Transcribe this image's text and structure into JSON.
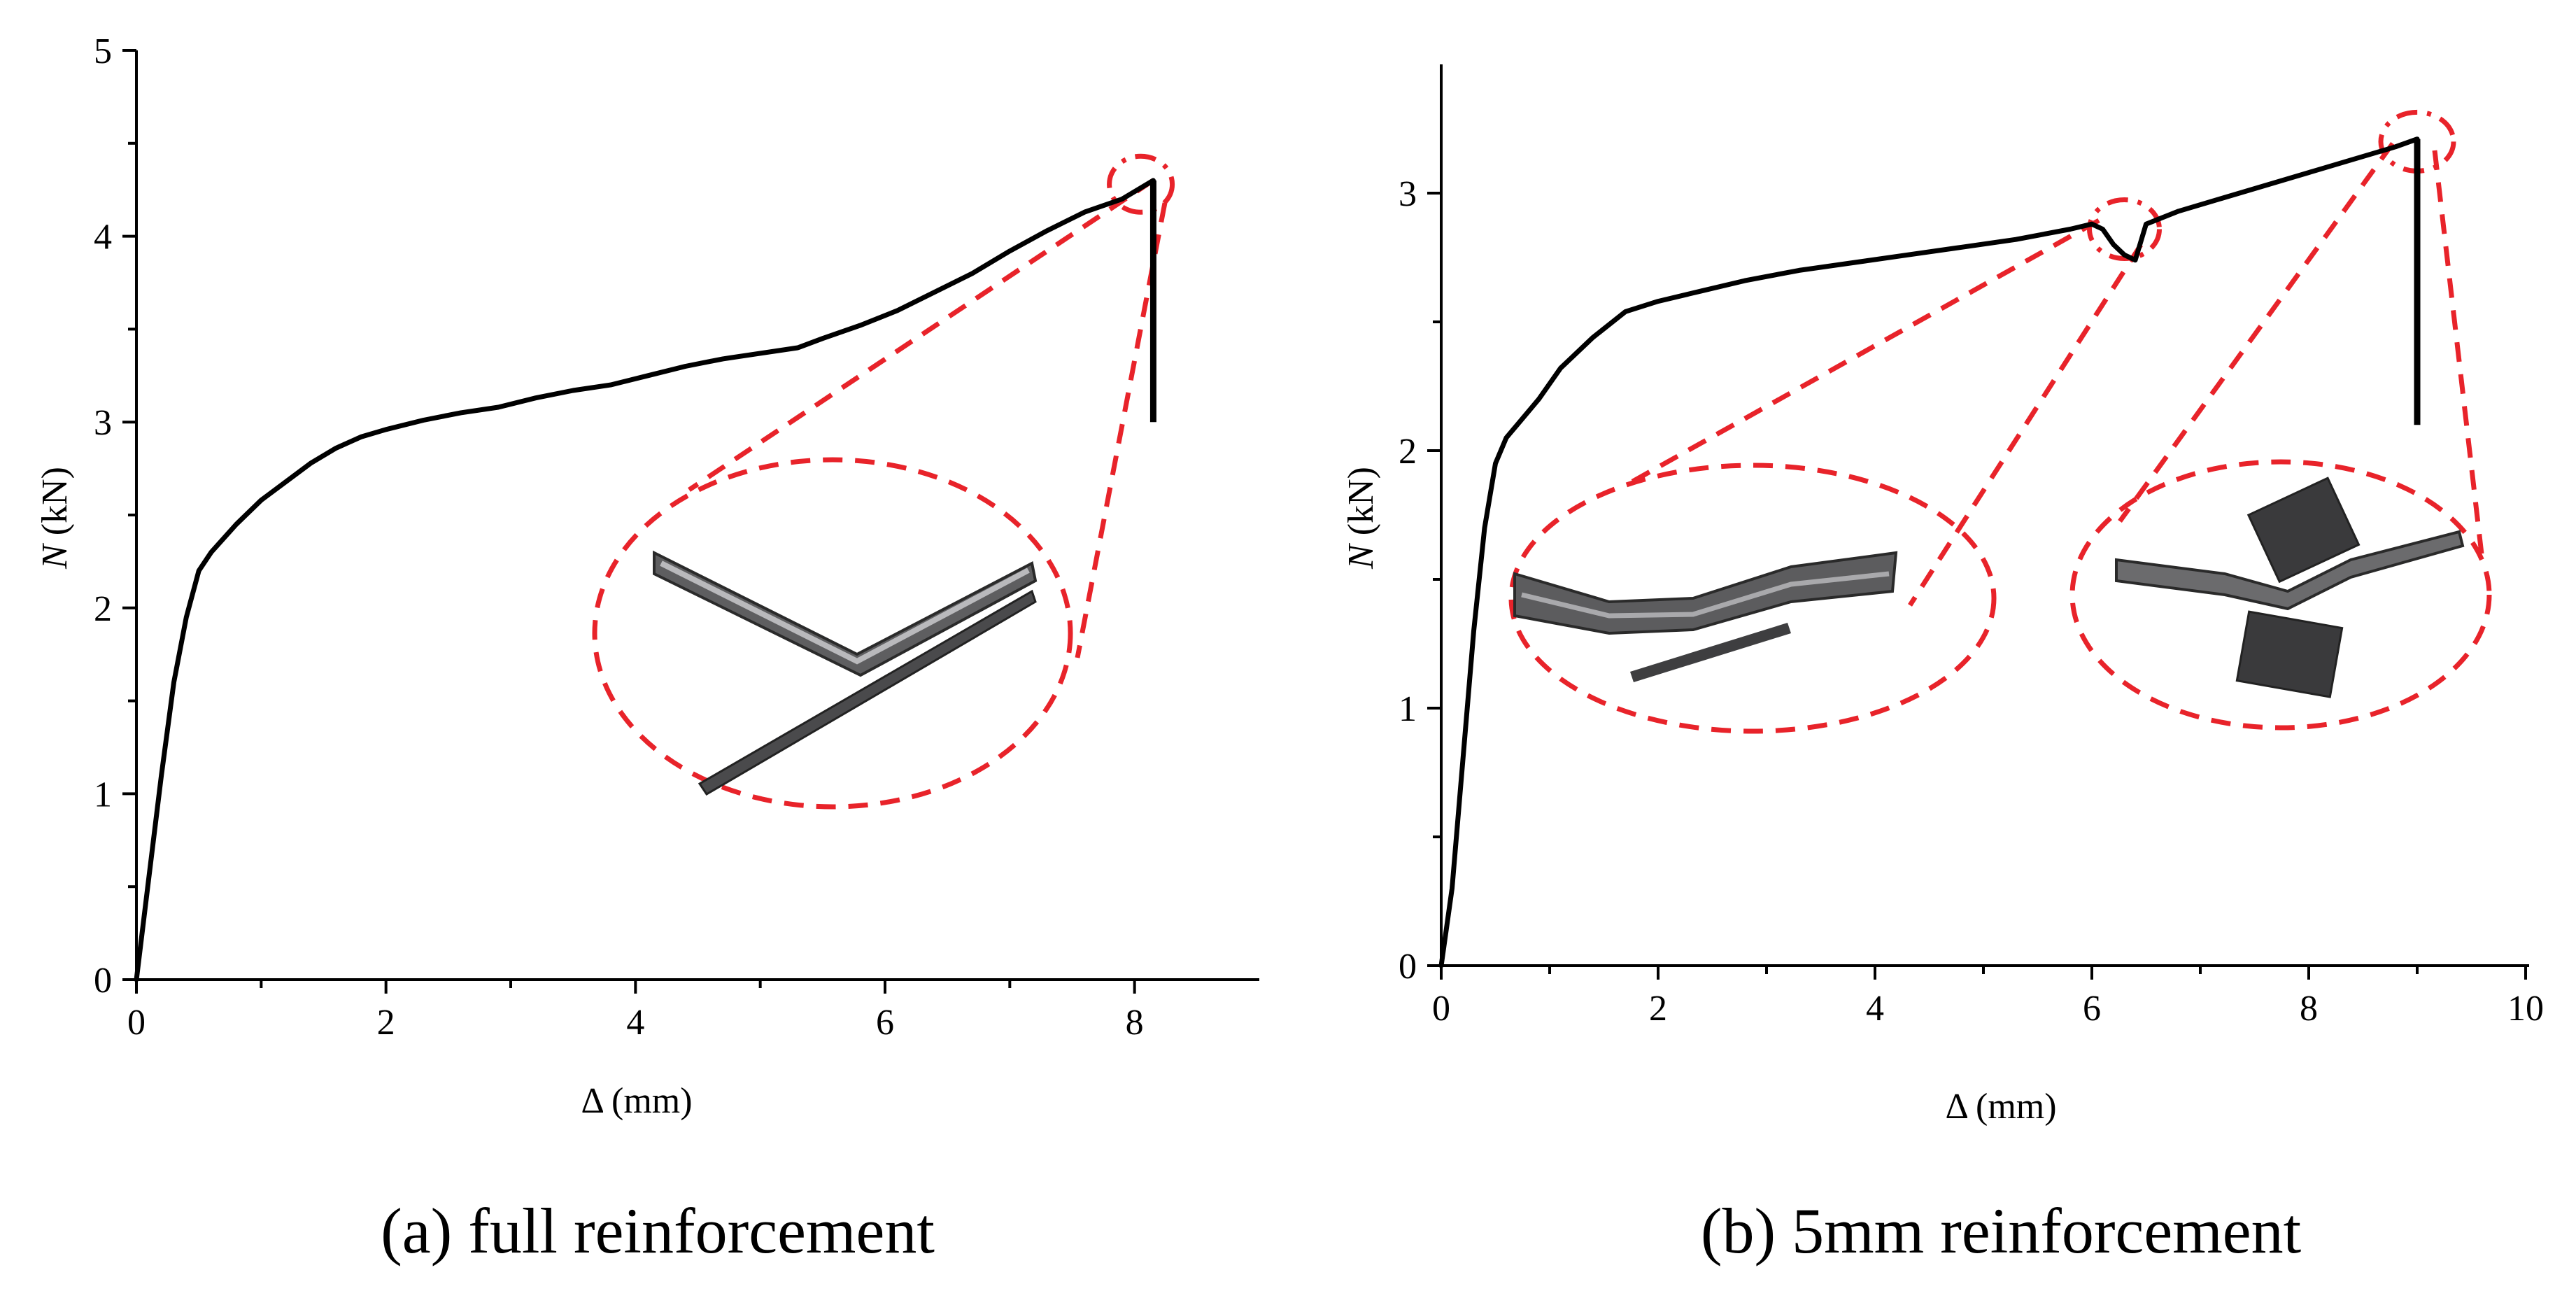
{
  "colors": {
    "curve": "#000000",
    "annotation": "#e8232a",
    "specimen": "#6f6f70"
  },
  "chart_data": [
    {
      "type": "line",
      "caption": "(a) full reinforcement",
      "xlabel": "Δ (mm)",
      "ylabel_italic": "N",
      "ylabel_unit": " (kN)",
      "xlim": [
        0,
        9
      ],
      "ylim": [
        0,
        5
      ],
      "xticks": [
        0,
        2,
        4,
        6,
        8
      ],
      "yticks": [
        0,
        1,
        2,
        3,
        4,
        5
      ],
      "x": [
        0,
        0.1,
        0.2,
        0.3,
        0.4,
        0.5,
        0.6,
        0.8,
        1.0,
        1.2,
        1.4,
        1.6,
        1.8,
        2.0,
        2.3,
        2.6,
        2.9,
        3.2,
        3.5,
        3.8,
        4.1,
        4.4,
        4.7,
        5.0,
        5.3,
        5.5,
        5.8,
        6.1,
        6.4,
        6.7,
        7.0,
        7.3,
        7.6,
        7.9,
        8.15
      ],
      "y": [
        0,
        0.55,
        1.1,
        1.6,
        1.95,
        2.2,
        2.3,
        2.45,
        2.58,
        2.68,
        2.78,
        2.86,
        2.92,
        2.96,
        3.01,
        3.05,
        3.08,
        3.13,
        3.17,
        3.2,
        3.25,
        3.3,
        3.34,
        3.37,
        3.4,
        3.45,
        3.52,
        3.6,
        3.7,
        3.8,
        3.92,
        4.03,
        4.13,
        4.2,
        4.3
      ],
      "drop": {
        "x": 8.15,
        "from": 4.3,
        "to": 3.0
      },
      "annotations": [
        {
          "type": "failure-point",
          "x": 8.05,
          "y": 4.28
        }
      ]
    },
    {
      "type": "line",
      "caption": "(b) 5mm reinforcement",
      "xlabel": "Δ (mm)",
      "ylabel_italic": "N",
      "ylabel_unit": " (kN)",
      "xlim": [
        0,
        10
      ],
      "ylim": [
        0,
        3.5
      ],
      "xticks": [
        0,
        2,
        4,
        6,
        8,
        10
      ],
      "yticks": [
        0,
        1,
        2,
        3
      ],
      "x": [
        0,
        0.1,
        0.2,
        0.3,
        0.4,
        0.5,
        0.6,
        0.7,
        0.9,
        1.1,
        1.4,
        1.7,
        2.0,
        2.4,
        2.8,
        3.3,
        3.8,
        4.3,
        4.8,
        5.3,
        5.8,
        6.0,
        6.1,
        6.2,
        6.3,
        6.4,
        6.5,
        6.8,
        7.2,
        7.6,
        8.0,
        8.4,
        8.8,
        9.0
      ],
      "y": [
        0,
        0.3,
        0.8,
        1.3,
        1.7,
        1.95,
        2.05,
        2.1,
        2.2,
        2.32,
        2.44,
        2.54,
        2.58,
        2.62,
        2.66,
        2.7,
        2.73,
        2.76,
        2.79,
        2.82,
        2.86,
        2.88,
        2.86,
        2.8,
        2.76,
        2.74,
        2.88,
        2.93,
        2.98,
        3.03,
        3.08,
        3.13,
        3.18,
        3.21
      ],
      "drop": {
        "x": 9.0,
        "from": 3.21,
        "to": 2.1
      },
      "annotations": [
        {
          "type": "local-buckling-point",
          "x": 6.3,
          "y": 2.86
        },
        {
          "type": "failure-point",
          "x": 9.0,
          "y": 3.2
        }
      ]
    }
  ]
}
